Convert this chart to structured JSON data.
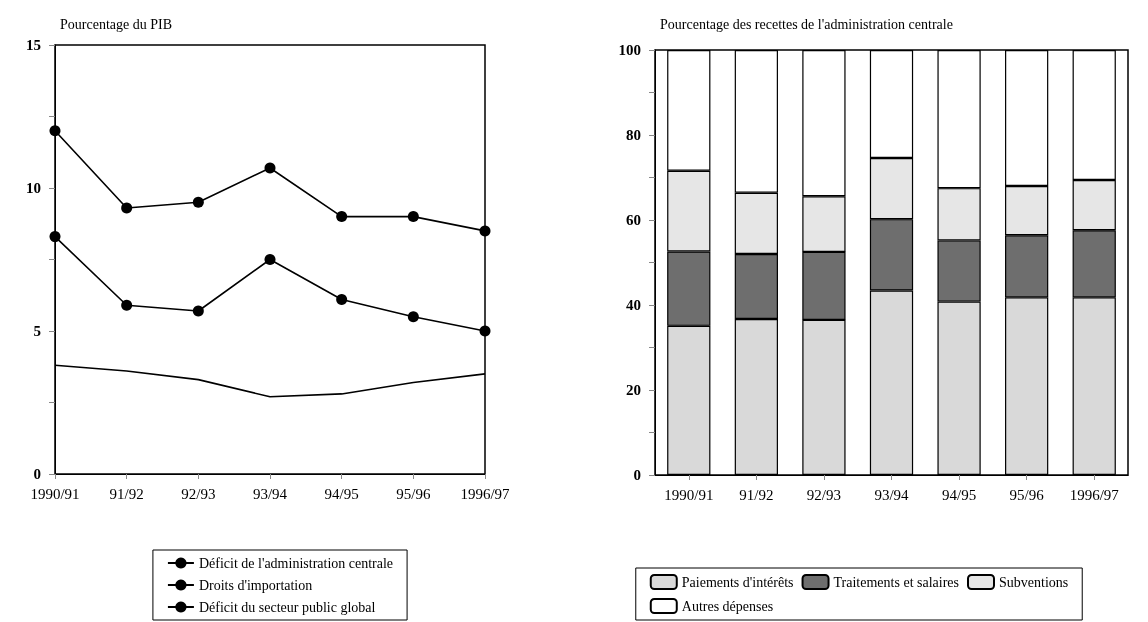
{
  "chart_data": [
    {
      "type": "line",
      "title": "Pourcentage du PIB",
      "categories": [
        "1990/91",
        "91/92",
        "92/93",
        "93/94",
        "94/95",
        "95/96",
        "1996/97"
      ],
      "series": [
        {
          "name": "Déficit de l'administration centrale",
          "color": "#000000",
          "marker": "circle",
          "values": [
            8.3,
            5.9,
            5.7,
            7.5,
            6.1,
            5.5,
            5.0
          ]
        },
        {
          "name": "Droits d'importation",
          "color": "#000000",
          "marker": "none",
          "values": [
            3.8,
            3.6,
            3.3,
            2.7,
            2.8,
            3.2,
            3.5
          ]
        },
        {
          "name": "Déficit du secteur public global",
          "color": "#000000",
          "marker": "circle",
          "values": [
            12.0,
            9.3,
            9.5,
            10.7,
            9.0,
            9.0,
            8.5
          ]
        }
      ],
      "ylim": [
        0,
        15
      ],
      "yticks": [
        0,
        {
          "value": 2.5,
          "label": null
        },
        5,
        {
          "value": 7.5,
          "label": null
        },
        10,
        {
          "value": 12.5,
          "label": null
        },
        15
      ],
      "grid": false,
      "legend": "bottom",
      "line_style": "solid"
    },
    {
      "type": "bar",
      "stacked": true,
      "title": "Pourcentage des recettes de l'administration centrale",
      "categories": [
        "1990/91",
        "91/92",
        "92/93",
        "93/94",
        "94/95",
        "95/96",
        "1996/97"
      ],
      "series": [
        {
          "name": "Paiements d'intérêts",
          "color": "#d9d9d9",
          "values": [
            35.1,
            36.7,
            36.5,
            43.4,
            40.8,
            41.8,
            41.8
          ]
        },
        {
          "name": "Traitements et salaires",
          "color": "#6e6e6e",
          "values": [
            17.5,
            15.3,
            16.0,
            16.8,
            14.4,
            14.6,
            15.8
          ]
        },
        {
          "name": "Subventions",
          "color": "#e6e6e6",
          "values": [
            19.0,
            14.4,
            13.1,
            14.4,
            12.3,
            11.6,
            11.8
          ]
        },
        {
          "name": "Autres dépenses",
          "color": "#ffffff",
          "values": [
            28.4,
            33.6,
            34.4,
            25.4,
            32.5,
            32.0,
            30.6
          ]
        }
      ],
      "ylim": [
        0,
        100
      ],
      "yticks": [
        0,
        {
          "value": 10,
          "label": null
        },
        20,
        {
          "value": 30,
          "label": null
        },
        40,
        {
          "value": 50,
          "label": null
        },
        60,
        {
          "value": 70,
          "label": null
        },
        80,
        {
          "value": 90,
          "label": null
        },
        100
      ],
      "grid": false,
      "legend": "bottom"
    }
  ]
}
